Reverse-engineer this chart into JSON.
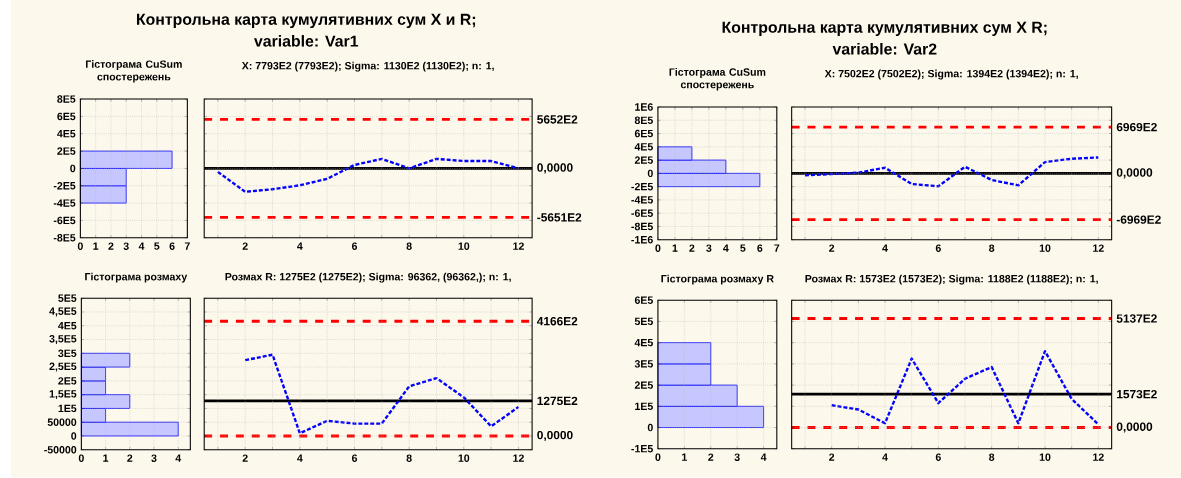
{
  "chart_data": [
    {
      "type": "histogram",
      "orientation": "horizontal",
      "title": "Гістограма CuSum спостережень",
      "bins": [
        -400000,
        -200000,
        0,
        200000
      ],
      "values": [
        3,
        3,
        6
      ],
      "color": "#0000ff",
      "xlim": [
        0,
        7
      ],
      "xticks": [
        0,
        1,
        2,
        3,
        4,
        5,
        6,
        7
      ],
      "ylim": [
        -800000,
        800000
      ],
      "yticks": [
        {
          "value": -800000,
          "label": "-8E5"
        },
        {
          "value": -600000,
          "label": "-6E5"
        },
        {
          "value": -400000,
          "label": "-4E5"
        },
        {
          "value": -200000,
          "label": "-2E5"
        },
        0,
        {
          "value": 200000,
          "label": "2E5"
        },
        {
          "value": 400000,
          "label": "4E5"
        },
        {
          "value": 600000,
          "label": "6E5"
        },
        {
          "value": 800000,
          "label": "8E5"
        }
      ],
      "grid": true
    },
    {
      "type": "line",
      "title": "Контрольна карта кумулятивних сум X и R;",
      "subtitle": "variable:  Var1",
      "annotations": [
        "X: 7793E2 (7793E2); Sigma: 1130E2 (1130E2); n: 1,"
      ],
      "x": [
        1,
        2,
        3,
        4,
        5,
        6,
        7,
        8,
        9,
        10,
        11,
        12
      ],
      "values": [
        -40000,
        -270000,
        -240000,
        -195000,
        -120000,
        40000,
        110000,
        0,
        110000,
        85000,
        85000,
        0
      ],
      "color": "#0000ff",
      "line_style": "dashed",
      "xlim": [
        0.5,
        12.5
      ],
      "xticks": [
        {
          "value": 1,
          "label": null
        },
        2,
        {
          "value": 3,
          "label": null
        },
        4,
        {
          "value": 5,
          "label": null
        },
        6,
        {
          "value": 7,
          "label": null
        },
        8,
        {
          "value": 9,
          "label": null
        },
        10,
        {
          "value": 11,
          "label": null
        },
        12
      ],
      "ylim": [
        -800000,
        800000
      ],
      "yticks": [
        {
          "value": -800000,
          "label": null
        },
        {
          "value": -600000,
          "label": null
        },
        {
          "value": -400000,
          "label": null
        },
        {
          "value": -200000,
          "label": null
        },
        {
          "value": 0,
          "label": null
        },
        {
          "value": 200000,
          "label": null
        },
        {
          "value": 400000,
          "label": null
        },
        {
          "value": 600000,
          "label": null
        },
        {
          "value": 800000,
          "label": null
        }
      ],
      "tick_labels": "x",
      "grid": true,
      "ref_lines": [
        {
          "axis": "y",
          "value": 565200,
          "label": "5652E2",
          "color": "#ff0000",
          "line_style": "dashed"
        },
        {
          "axis": "y",
          "value": 0,
          "label": "0,0000",
          "color": "#000000",
          "line_style": "solid"
        },
        {
          "axis": "y",
          "value": -565100,
          "label": "-5651E2",
          "color": "#ff0000",
          "line_style": "dashed"
        }
      ]
    },
    {
      "type": "histogram",
      "orientation": "horizontal",
      "title": "Гістограма розмаху",
      "bins": [
        0,
        50000,
        100000,
        150000,
        200000,
        250000,
        300000
      ],
      "values": [
        4,
        1,
        2,
        1,
        1,
        2
      ],
      "color": "#0000ff",
      "xlim": [
        0,
        4.5
      ],
      "xticks": [
        0,
        1,
        2,
        3,
        4
      ],
      "ylim": [
        -50000,
        500000
      ],
      "yticks": [
        -50000,
        0,
        50000,
        {
          "value": 100000,
          "label": "1E5"
        },
        {
          "value": 150000,
          "label": "1,5E5"
        },
        {
          "value": 200000,
          "label": "2E5"
        },
        {
          "value": 250000,
          "label": "2,5E5"
        },
        {
          "value": 300000,
          "label": "3E5"
        },
        {
          "value": 350000,
          "label": "3,5E5"
        },
        {
          "value": 400000,
          "label": "4E5"
        },
        {
          "value": 450000,
          "label": "4,5E5"
        },
        {
          "value": 500000,
          "label": "5E5"
        }
      ],
      "grid": true
    },
    {
      "type": "line",
      "title": "Розмах R: 1275E2 (1275E2); Sigma: 96362, (96362,); n: 1,",
      "x": [
        2,
        3,
        4,
        5,
        6,
        7,
        8,
        9,
        10,
        11,
        12
      ],
      "values": [
        275000,
        295000,
        10000,
        55000,
        45000,
        45000,
        180000,
        210000,
        140000,
        35000,
        105000
      ],
      "color": "#0000ff",
      "line_style": "dashed",
      "xlim": [
        0.5,
        12.5
      ],
      "xticks": [
        {
          "value": 1,
          "label": null
        },
        2,
        {
          "value": 3,
          "label": null
        },
        4,
        {
          "value": 5,
          "label": null
        },
        6,
        {
          "value": 7,
          "label": null
        },
        8,
        {
          "value": 9,
          "label": null
        },
        10,
        {
          "value": 11,
          "label": null
        },
        12
      ],
      "ylim": [
        -50000,
        500000
      ],
      "yticks": [
        {
          "value": -50000,
          "label": null
        },
        {
          "value": 0,
          "label": null
        },
        {
          "value": 50000,
          "label": null
        },
        {
          "value": 100000,
          "label": null
        },
        {
          "value": 150000,
          "label": null
        },
        {
          "value": 200000,
          "label": null
        },
        {
          "value": 250000,
          "label": null
        },
        {
          "value": 300000,
          "label": null
        },
        {
          "value": 350000,
          "label": null
        },
        {
          "value": 400000,
          "label": null
        },
        {
          "value": 450000,
          "label": null
        },
        {
          "value": 500000,
          "label": null
        }
      ],
      "tick_labels": "x",
      "grid": true,
      "ref_lines": [
        {
          "axis": "y",
          "value": 416600,
          "label": "4166E2",
          "color": "#ff0000",
          "line_style": "dashed"
        },
        {
          "axis": "y",
          "value": 127500,
          "label": "1275E2",
          "color": "#000000",
          "line_style": "solid"
        },
        {
          "axis": "y",
          "value": 0,
          "label": "0,0000",
          "color": "#ff0000",
          "line_style": "dashed"
        }
      ]
    },
    {
      "type": "histogram",
      "orientation": "horizontal",
      "title": "Гістограма CuSum спостережень",
      "bins": [
        -200000,
        0,
        200000,
        400000
      ],
      "values": [
        6,
        4,
        2
      ],
      "color": "#0000ff",
      "xlim": [
        0,
        7
      ],
      "xticks": [
        0,
        1,
        2,
        3,
        4,
        5,
        6,
        7
      ],
      "ylim": [
        -1000000,
        1000000
      ],
      "yticks": [
        {
          "value": -1000000,
          "label": "-1E6"
        },
        {
          "value": -800000,
          "label": "-8E5"
        },
        {
          "value": -600000,
          "label": "-6E5"
        },
        {
          "value": -400000,
          "label": "-4E5"
        },
        {
          "value": -200000,
          "label": "-2E5"
        },
        0,
        {
          "value": 200000,
          "label": "2E5"
        },
        {
          "value": 400000,
          "label": "4E5"
        },
        {
          "value": 600000,
          "label": "6E5"
        },
        {
          "value": 800000,
          "label": "8E5"
        },
        {
          "value": 1000000,
          "label": "1E6"
        }
      ],
      "grid": true
    },
    {
      "type": "line",
      "title": "Контрольна карта кумулятивних сум X  R;",
      "subtitle": "variable:  Var2",
      "annotations": [
        "X: 7502E2 (7502E2); Sigma: 1394E2 (1394E2); n: 1,"
      ],
      "x": [
        1,
        2,
        3,
        4,
        5,
        6,
        7,
        8,
        9,
        10,
        11,
        12
      ],
      "values": [
        -30000,
        -10000,
        10000,
        85000,
        -160000,
        -195000,
        100000,
        -100000,
        -180000,
        170000,
        220000,
        240000
      ],
      "color": "#0000ff",
      "line_style": "dashed",
      "xlim": [
        0.5,
        12.5
      ],
      "xticks": [
        {
          "value": 1,
          "label": null
        },
        2,
        {
          "value": 3,
          "label": null
        },
        4,
        {
          "value": 5,
          "label": null
        },
        6,
        {
          "value": 7,
          "label": null
        },
        8,
        {
          "value": 9,
          "label": null
        },
        10,
        {
          "value": 11,
          "label": null
        },
        12
      ],
      "ylim": [
        -1000000,
        1000000
      ],
      "yticks": [
        {
          "value": -1000000,
          "label": null
        },
        {
          "value": -800000,
          "label": null
        },
        {
          "value": -600000,
          "label": null
        },
        {
          "value": -400000,
          "label": null
        },
        {
          "value": -200000,
          "label": null
        },
        {
          "value": 0,
          "label": null
        },
        {
          "value": 200000,
          "label": null
        },
        {
          "value": 400000,
          "label": null
        },
        {
          "value": 600000,
          "label": null
        },
        {
          "value": 800000,
          "label": null
        },
        {
          "value": 1000000,
          "label": null
        }
      ],
      "tick_labels": "x",
      "grid": true,
      "ref_lines": [
        {
          "axis": "y",
          "value": 696900,
          "label": "6969E2",
          "color": "#ff0000",
          "line_style": "dashed"
        },
        {
          "axis": "y",
          "value": 0,
          "label": "0,0000",
          "color": "#000000",
          "line_style": "solid"
        },
        {
          "axis": "y",
          "value": -696900,
          "label": "-6969E2",
          "color": "#ff0000",
          "line_style": "dashed"
        }
      ]
    },
    {
      "type": "histogram",
      "orientation": "horizontal",
      "title": "Гістограма розмаху R",
      "bins": [
        0,
        100000,
        200000,
        300000,
        400000
      ],
      "values": [
        4,
        3,
        2,
        2
      ],
      "color": "#0000ff",
      "xlim": [
        0,
        4.5
      ],
      "xticks": [
        0,
        1,
        2,
        3,
        4
      ],
      "ylim": [
        -100000,
        600000
      ],
      "yticks": [
        {
          "value": -100000,
          "label": "-1E5"
        },
        0,
        {
          "value": 100000,
          "label": "1E5"
        },
        {
          "value": 200000,
          "label": "2E5"
        },
        {
          "value": 300000,
          "label": "3E5"
        },
        {
          "value": 400000,
          "label": "4E5"
        },
        {
          "value": 500000,
          "label": "5E5"
        },
        {
          "value": 600000,
          "label": "6E5"
        }
      ],
      "grid": true
    },
    {
      "type": "line",
      "title": "Розмах R: 1573E2 (1573E2); Sigma: 1188E2 (1188E2); n: 1,",
      "x": [
        2,
        3,
        4,
        5,
        6,
        7,
        8,
        9,
        10,
        11,
        12
      ],
      "values": [
        105000,
        85000,
        20000,
        325000,
        115000,
        230000,
        285000,
        20000,
        360000,
        135000,
        15000
      ],
      "color": "#0000ff",
      "line_style": "dashed",
      "xlim": [
        0.5,
        12.5
      ],
      "xticks": [
        {
          "value": 1,
          "label": null
        },
        2,
        {
          "value": 3,
          "label": null
        },
        4,
        {
          "value": 5,
          "label": null
        },
        6,
        {
          "value": 7,
          "label": null
        },
        8,
        {
          "value": 9,
          "label": null
        },
        10,
        {
          "value": 11,
          "label": null
        },
        12
      ],
      "ylim": [
        -100000,
        600000
      ],
      "yticks": [
        {
          "value": -100000,
          "label": null
        },
        {
          "value": 0,
          "label": null
        },
        {
          "value": 100000,
          "label": null
        },
        {
          "value": 200000,
          "label": null
        },
        {
          "value": 300000,
          "label": null
        },
        {
          "value": 400000,
          "label": null
        },
        {
          "value": 500000,
          "label": null
        },
        {
          "value": 600000,
          "label": null
        }
      ],
      "tick_labels": "x",
      "grid": true,
      "ref_lines": [
        {
          "axis": "y",
          "value": 513700,
          "label": "5137E2",
          "color": "#ff0000",
          "line_style": "dashed"
        },
        {
          "axis": "y",
          "value": 157300,
          "label": "1573E2",
          "color": "#000000",
          "line_style": "solid"
        },
        {
          "axis": "y",
          "value": 0,
          "label": "0,0000",
          "color": "#ff0000",
          "line_style": "dashed"
        }
      ]
    }
  ]
}
